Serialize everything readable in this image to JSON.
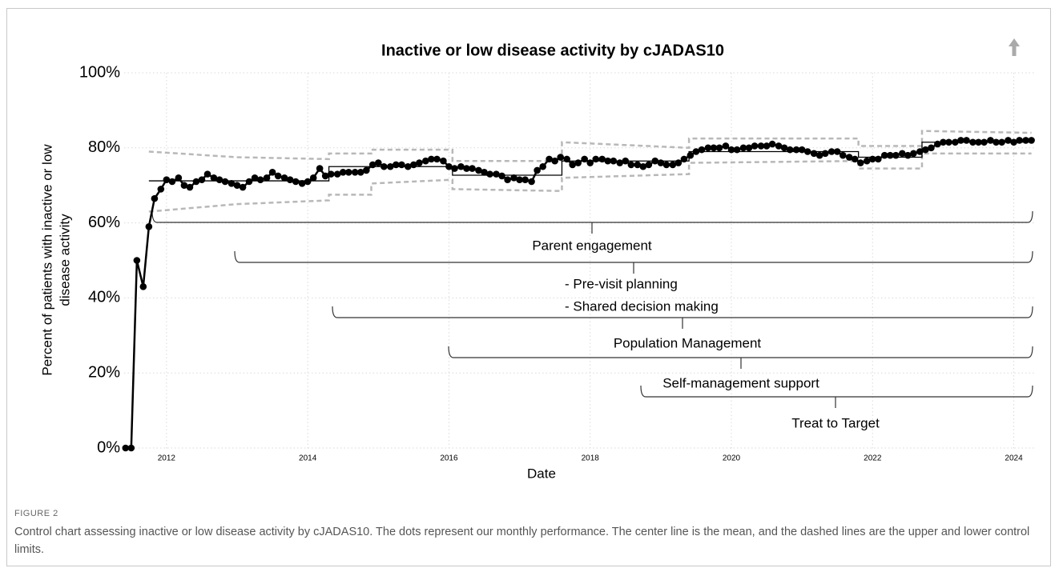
{
  "chart_data": {
    "type": "line",
    "title": "Inactive or low disease activity by cJADAS10",
    "xlabel": "Date",
    "ylabel": [
      "Percent of patients with inactive or low",
      "disease activity"
    ],
    "xlim": [
      2011.4,
      2024.3
    ],
    "xticks": [
      2012,
      2014,
      2016,
      2018,
      2020,
      2022,
      2024
    ],
    "ylim": [
      0,
      100
    ],
    "yticks": [
      {
        "value": 0,
        "label": "0%"
      },
      {
        "value": 20,
        "label": "20%"
      },
      {
        "value": 40,
        "label": "40%"
      },
      {
        "value": 60,
        "label": "60%"
      },
      {
        "value": 80,
        "label": "80%"
      },
      {
        "value": 100,
        "label": "100%"
      }
    ],
    "grid": true,
    "color": "#000000",
    "x": [
      2011.42,
      2011.5,
      2011.58,
      2011.67,
      2011.75,
      2011.83,
      2011.92,
      2012.0,
      2012.08,
      2012.17,
      2012.25,
      2012.33,
      2012.42,
      2012.5,
      2012.58,
      2012.67,
      2012.75,
      2012.83,
      2012.92,
      2013.0,
      2013.08,
      2013.17,
      2013.25,
      2013.33,
      2013.42,
      2013.5,
      2013.58,
      2013.67,
      2013.75,
      2013.83,
      2013.92,
      2014.0,
      2014.08,
      2014.17,
      2014.25,
      2014.33,
      2014.42,
      2014.5,
      2014.58,
      2014.67,
      2014.75,
      2014.83,
      2014.92,
      2015.0,
      2015.08,
      2015.17,
      2015.25,
      2015.33,
      2015.42,
      2015.5,
      2015.58,
      2015.67,
      2015.75,
      2015.83,
      2015.92,
      2016.0,
      2016.08,
      2016.17,
      2016.25,
      2016.33,
      2016.42,
      2016.5,
      2016.58,
      2016.67,
      2016.75,
      2016.83,
      2016.92,
      2017.0,
      2017.08,
      2017.17,
      2017.25,
      2017.33,
      2017.42,
      2017.5,
      2017.58,
      2017.67,
      2017.75,
      2017.83,
      2017.92,
      2018.0,
      2018.08,
      2018.17,
      2018.25,
      2018.33,
      2018.42,
      2018.5,
      2018.58,
      2018.67,
      2018.75,
      2018.83,
      2018.92,
      2019.0,
      2019.08,
      2019.17,
      2019.25,
      2019.33,
      2019.42,
      2019.5,
      2019.58,
      2019.67,
      2019.75,
      2019.83,
      2019.92,
      2020.0,
      2020.08,
      2020.17,
      2020.25,
      2020.33,
      2020.42,
      2020.5,
      2020.58,
      2020.67,
      2020.75,
      2020.83,
      2020.92,
      2021.0,
      2021.08,
      2021.17,
      2021.25,
      2021.33,
      2021.42,
      2021.5,
      2021.58,
      2021.67,
      2021.75,
      2021.83,
      2021.92,
      2022.0,
      2022.08,
      2022.17,
      2022.25,
      2022.33,
      2022.42,
      2022.5,
      2022.58,
      2022.67,
      2022.75,
      2022.83,
      2022.92,
      2023.0,
      2023.08,
      2023.17,
      2023.25,
      2023.33,
      2023.42,
      2023.5,
      2023.58,
      2023.67,
      2023.75,
      2023.83,
      2023.92,
      2024.0,
      2024.08,
      2024.17,
      2024.25
    ],
    "values": [
      0,
      0,
      50,
      43,
      59,
      66.5,
      69,
      71.5,
      71,
      72,
      70,
      69.5,
      71,
      71.5,
      73,
      72,
      71.5,
      71,
      70.5,
      70,
      69.5,
      71,
      72,
      71.5,
      72,
      73.5,
      72.5,
      72,
      71.5,
      71,
      70.5,
      71,
      72,
      74.5,
      72.5,
      73,
      73,
      73.5,
      73.5,
      73.5,
      73.5,
      74,
      75.5,
      76,
      75,
      75,
      75.5,
      75.5,
      75,
      75.5,
      76,
      76.5,
      77,
      77,
      76.5,
      75,
      74.5,
      75,
      74.5,
      74.5,
      74,
      73.5,
      73,
      73,
      72.5,
      71.5,
      72,
      71.5,
      71.5,
      71,
      74,
      75,
      77,
      76.5,
      77.5,
      77,
      75.5,
      76,
      77,
      76,
      77,
      77,
      76.5,
      76.5,
      76,
      76.5,
      75.5,
      75.5,
      75,
      75.5,
      76.5,
      76,
      75.5,
      75.5,
      76,
      77,
      78,
      79,
      79.5,
      80,
      80,
      80,
      80.5,
      79.5,
      79.5,
      80,
      80,
      80.5,
      80.5,
      80.5,
      81,
      80.5,
      80,
      79.5,
      79.5,
      79.5,
      79,
      78.5,
      78,
      78.5,
      79,
      79,
      78,
      77.5,
      77,
      76,
      76.5,
      77,
      77,
      78,
      78,
      78,
      78.5,
      78,
      78.5,
      79,
      79.5,
      80,
      81,
      81.5,
      81.5,
      81.5,
      82,
      82,
      81.5,
      81.5,
      81.5,
      82,
      81.5,
      81.5,
      82,
      81.5,
      82,
      82,
      82
    ],
    "center_line": {
      "color": "#000000",
      "x": [
        2011.75,
        2014.3,
        2014.3,
        2016.05,
        2016.05,
        2017.6,
        2017.6,
        2019.4,
        2019.4,
        2021.8,
        2021.8,
        2022.7,
        2022.7,
        2024.25
      ],
      "values": [
        71.2,
        71.2,
        75,
        75,
        72.7,
        72.7,
        76.5,
        76.5,
        79,
        79,
        77.5,
        77.5,
        81.5,
        81.5
      ]
    },
    "upper_limit": {
      "color": "#b8b8b8",
      "x": [
        2011.75,
        2013,
        2014.3,
        2014.3,
        2014.9,
        2014.9,
        2016.05,
        2016.05,
        2017.6,
        2017.6,
        2019.4,
        2019.4,
        2021.8,
        2021.8,
        2022.7,
        2022.7,
        2024.25
      ],
      "values": [
        79,
        77.5,
        77,
        78.5,
        78.5,
        79.5,
        79.5,
        76.5,
        76.5,
        81.5,
        80,
        82.5,
        82.5,
        80.5,
        80.5,
        84.5,
        84
      ]
    },
    "lower_limit": {
      "color": "#b8b8b8",
      "x": [
        2011.75,
        2013,
        2014.3,
        2014.3,
        2014.9,
        2014.9,
        2016.05,
        2016.05,
        2017.6,
        2017.6,
        2019.4,
        2019.4,
        2021.8,
        2021.8,
        2022.7,
        2022.7,
        2024.25
      ],
      "values": [
        63,
        65,
        66,
        67.5,
        67.5,
        70.5,
        71.5,
        69,
        68.5,
        72,
        73,
        76,
        76.5,
        74.5,
        74.5,
        78.5,
        78.5
      ]
    },
    "annotations": [
      "Parent engagement",
      "- Pre-visit planning",
      "- Shared decision making",
      "Population Management",
      "Self-management support",
      "Treat to Target"
    ]
  },
  "figure_label": "FIGURE 2",
  "caption": "Control chart assessing inactive or low disease activity by cJADAS10. The dots represent our monthly performance. The center line is the mean, and the dashed lines are the upper and lower control limits."
}
